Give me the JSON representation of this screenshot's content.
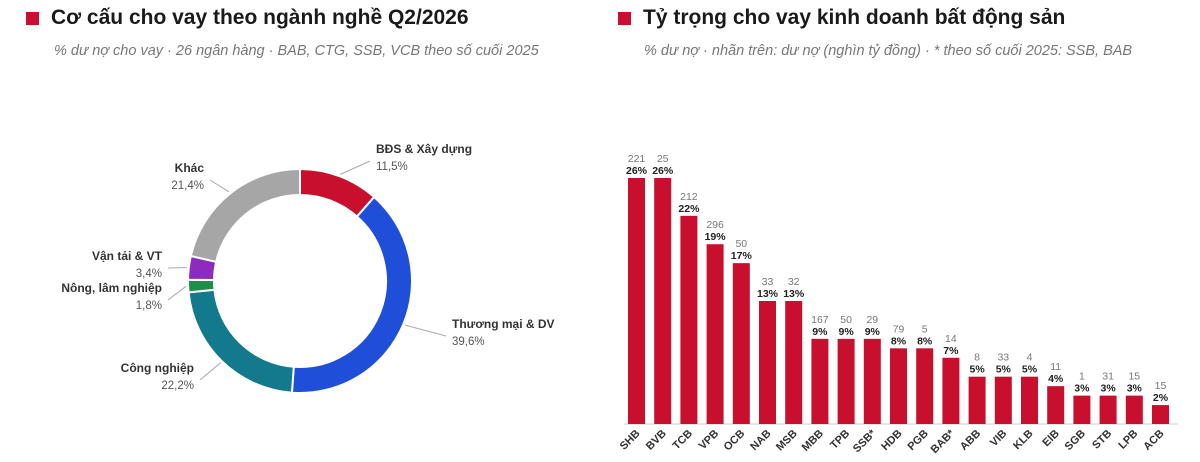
{
  "accent": "#c8102e",
  "left": {
    "title": "Cơ cấu cho vay theo ngành nghề Q2/2026",
    "subtitle": "% dư nợ cho vay · 26 ngân hàng · BAB, CTG, SSB, VCB theo số cuối 2025"
  },
  "right": {
    "title": "Tỷ trọng cho vay kinh doanh bất động sản",
    "subtitle": "% dư nợ · nhãn trên: dư nợ (nghìn tỷ đồng) · * theo số cuối 2025: SSB, BAB"
  },
  "chart_data": [
    {
      "type": "pie",
      "donut": true,
      "slices": [
        {
          "label": "BĐS & Xây dựng",
          "value": 11.5,
          "value_text": "11,5%",
          "color": "#c8102e"
        },
        {
          "label": "Thương mại & DV",
          "value": 39.6,
          "value_text": "39,6%",
          "color": "#1f4fd8"
        },
        {
          "label": "Công nghiệp",
          "value": 22.2,
          "value_text": "22,2%",
          "color": "#127a8c"
        },
        {
          "label": "Nông, lâm nghiệp",
          "value": 1.8,
          "value_text": "1,8%",
          "color": "#1e8f4a"
        },
        {
          "label": "Vận tải & VT",
          "value": 3.4,
          "value_text": "3,4%",
          "color": "#8e2bbf"
        },
        {
          "label": "Khác",
          "value": 21.4,
          "value_text": "21,4%",
          "color": "#a6a6a6"
        }
      ]
    },
    {
      "type": "bar",
      "categories": [
        "SHB",
        "BVB",
        "TCB",
        "VPB",
        "OCB",
        "NAB",
        "MSB",
        "MBB",
        "TPB",
        "SSB*",
        "HDB",
        "PGB",
        "BAB*",
        "ABB",
        "VIB",
        "KLB",
        "EIB",
        "SGB",
        "STB",
        "LPB",
        "ACB"
      ],
      "values": [
        26,
        26,
        22,
        19,
        17,
        13,
        13,
        9,
        9,
        9,
        8,
        8,
        7,
        5,
        5,
        5,
        4,
        3,
        3,
        3,
        2
      ],
      "value_labels": [
        "26%",
        "26%",
        "22%",
        "19%",
        "17%",
        "13%",
        "13%",
        "9%",
        "9%",
        "9%",
        "8%",
        "8%",
        "7%",
        "5%",
        "5%",
        "5%",
        "4%",
        "3%",
        "3%",
        "3%",
        "2%"
      ],
      "top_labels": [
        "221",
        "25",
        "212",
        "296",
        "50",
        "33",
        "32",
        "167",
        "50",
        "29",
        "79",
        "5",
        "14",
        "8",
        "33",
        "4",
        "11",
        "1",
        "31",
        "15",
        "15"
      ],
      "color": "#c8102e",
      "ylim": [
        0,
        28
      ]
    }
  ]
}
